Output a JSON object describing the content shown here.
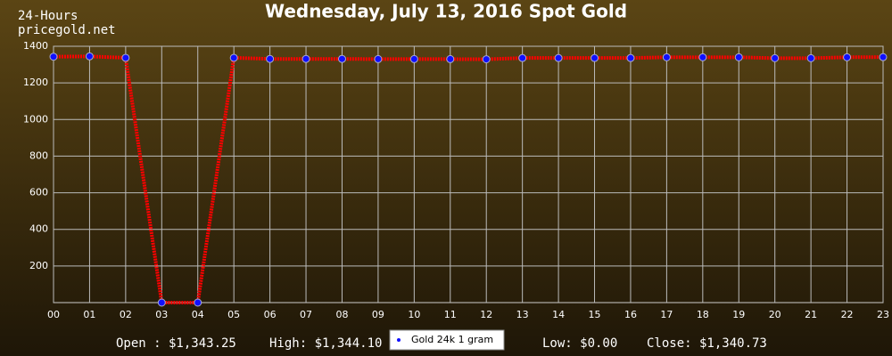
{
  "chart_data": {
    "type": "line",
    "title": "Wednesday, July 13, 2016 Spot Gold",
    "corner_text": [
      "24-Hours",
      "pricegold.net"
    ],
    "categories": [
      "00",
      "01",
      "02",
      "03",
      "04",
      "05",
      "06",
      "07",
      "08",
      "09",
      "10",
      "11",
      "12",
      "13",
      "14",
      "15",
      "16",
      "17",
      "18",
      "19",
      "20",
      "21",
      "22",
      "23"
    ],
    "series": [
      {
        "name": "Gold 24k 1 gram",
        "color": "#ff0000",
        "marker_color": "#1010ff",
        "values": [
          1343,
          1345,
          1337,
          0,
          0,
          1337,
          1331,
          1331,
          1331,
          1330,
          1330,
          1330,
          1329,
          1336,
          1336,
          1336,
          1336,
          1340,
          1340,
          1340,
          1335,
          1335,
          1340,
          1341
        ]
      }
    ],
    "ylim": [
      0,
      1400
    ],
    "yticks": [
      200,
      400,
      600,
      800,
      1000,
      1200,
      1400
    ],
    "grid": true,
    "footer": [
      "Open : $1,343.25",
      "High: $1,344.10",
      "Low: $0.00",
      "Close: $1,340.73"
    ]
  }
}
